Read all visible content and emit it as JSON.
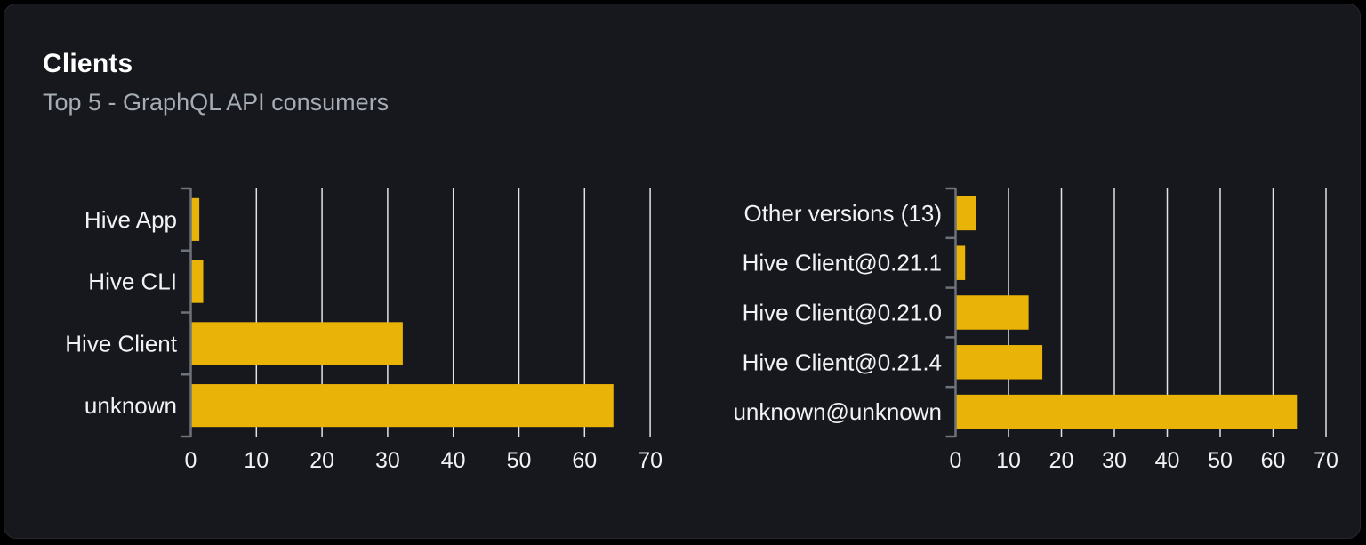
{
  "card": {
    "title": "Clients",
    "subtitle": "Top 5 - GraphQL API consumers"
  },
  "colors": {
    "page_bg": "#000000",
    "card_bg": "#16181d",
    "card_border": "#26282e",
    "title": "#ffffff",
    "subtitle": "#a6acb5",
    "bar": "#eab308",
    "gridline": "#dde3ea",
    "axis": "#6e727a",
    "label": "#f1f2f4"
  },
  "chart_data": [
    {
      "type": "bar",
      "orientation": "horizontal",
      "title": "",
      "categories": [
        "Hive App",
        "Hive CLI",
        "Hive Client",
        "unknown"
      ],
      "values": [
        1.3,
        1.9,
        32.3,
        64.4
      ],
      "xlim": [
        0,
        70
      ],
      "xticks": [
        0,
        10,
        20,
        30,
        40,
        50,
        60,
        70
      ],
      "grid": "vertical",
      "legend": "none"
    },
    {
      "type": "bar",
      "orientation": "horizontal",
      "title": "",
      "categories": [
        "Other versions (13)",
        "Hive Client@0.21.1",
        "Hive Client@0.21.0",
        "Hive Client@0.21.4",
        "unknown@unknown"
      ],
      "values": [
        3.9,
        1.8,
        13.8,
        16.4,
        64.5
      ],
      "xlim": [
        0,
        70
      ],
      "xticks": [
        0,
        10,
        20,
        30,
        40,
        50,
        60,
        70
      ],
      "grid": "vertical",
      "legend": "none"
    }
  ]
}
